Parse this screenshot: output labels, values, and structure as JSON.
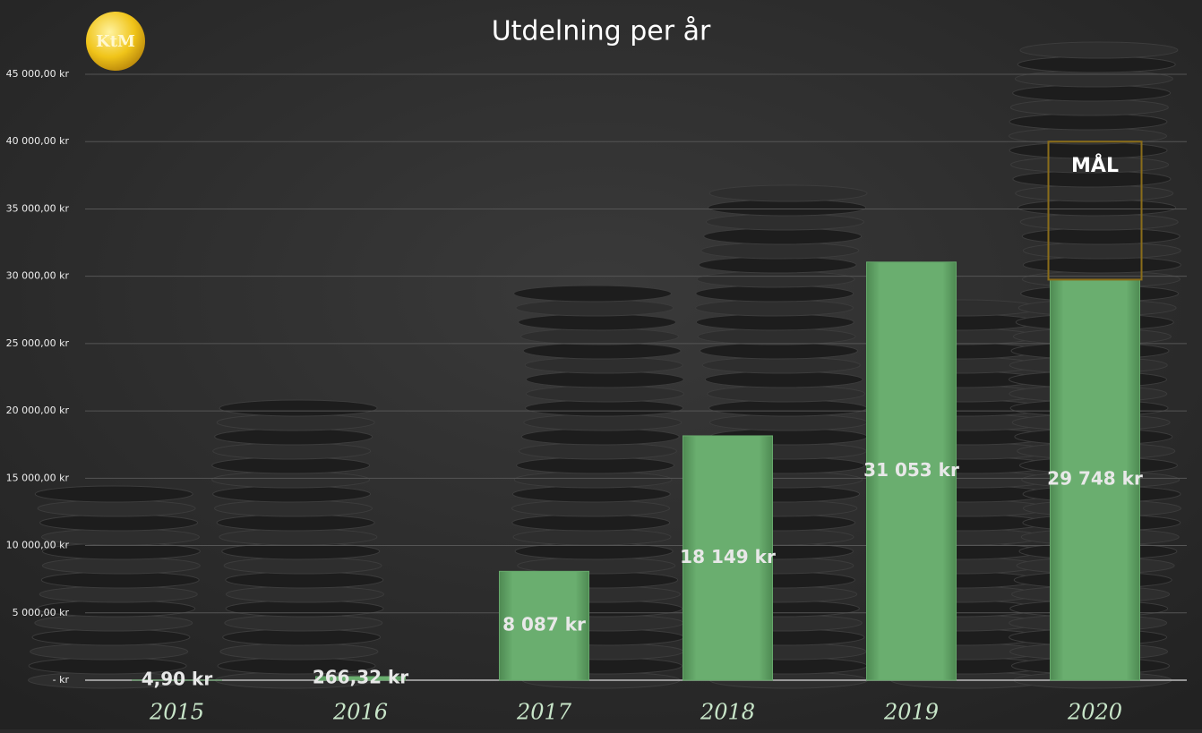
{
  "chart_data": {
    "type": "bar",
    "title": "Utdelning per år",
    "logo": "KtM",
    "categories": [
      "2015",
      "2016",
      "2017",
      "2018",
      "2019",
      "2020"
    ],
    "values": [
      4.9,
      266.32,
      8087,
      18149,
      31053,
      29748
    ],
    "value_labels": [
      "4,90 kr",
      "266,32 kr",
      "8 087 kr",
      "18 149 kr",
      "31 053 kr",
      "29 748 kr"
    ],
    "color": "#66a86b",
    "goal": {
      "label": "MÅL",
      "value": 40000,
      "color": "#8a6d1a"
    },
    "ylim": [
      0,
      45000
    ],
    "yticks": [
      {
        "value": 0,
        "label": "-   kr"
      },
      {
        "value": 5000,
        "label": "5 000,00 kr"
      },
      {
        "value": 10000,
        "label": "10 000,00 kr"
      },
      {
        "value": 15000,
        "label": "15 000,00 kr"
      },
      {
        "value": 20000,
        "label": "20 000,00 kr"
      },
      {
        "value": 25000,
        "label": "25 000,00 kr"
      },
      {
        "value": 30000,
        "label": "30 000,00 kr"
      },
      {
        "value": 35000,
        "label": "35 000,00 kr"
      },
      {
        "value": 40000,
        "label": "40 000,00 kr"
      },
      {
        "value": 45000,
        "label": "45 000,00 kr"
      }
    ],
    "grid": true
  }
}
